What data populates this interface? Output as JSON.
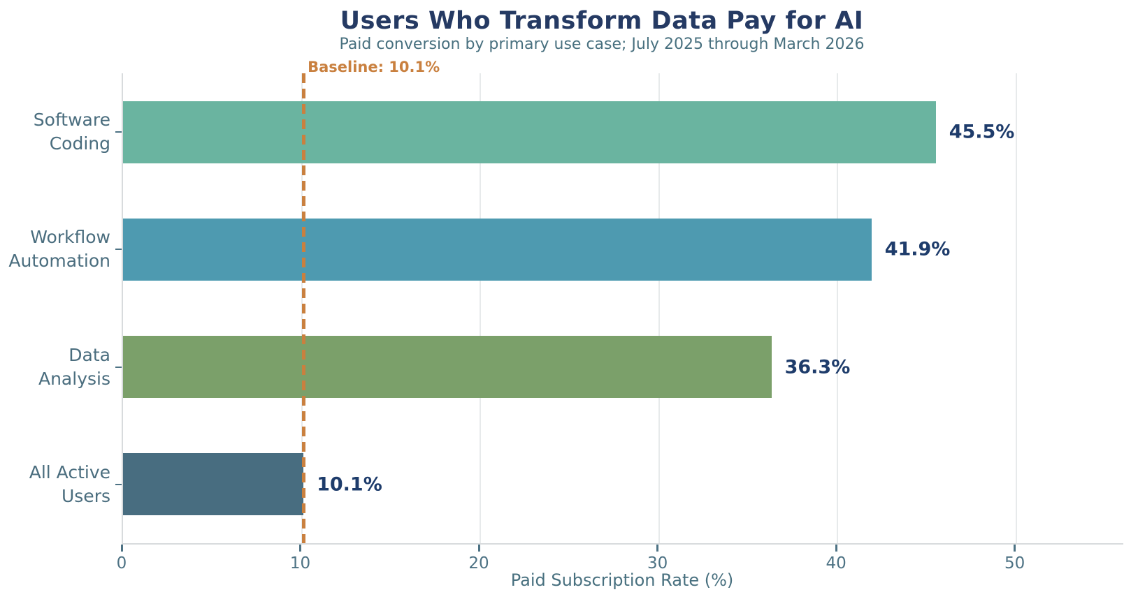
{
  "header": {
    "title": "Users Who Transform Data Pay for AI",
    "subtitle": "Paid conversion by primary use case; July 2025 through March 2026"
  },
  "chart_data": {
    "type": "bar",
    "orientation": "horizontal",
    "title": "Users Who Transform Data Pay for AI",
    "subtitle": "Paid conversion by primary use case; July 2025 through March 2026",
    "categories": [
      "Software Coding",
      "Workflow Automation",
      "Data Analysis",
      "All Active Users"
    ],
    "category_display_lines": [
      "Software\nCoding",
      "Workflow\nAutomation",
      "Data\nAnalysis",
      "All Active\nUsers"
    ],
    "values": [
      45.5,
      41.9,
      36.3,
      10.1
    ],
    "value_labels": [
      "45.5%",
      "41.9%",
      "36.3%",
      "10.1%"
    ],
    "bar_colors": [
      "#6ab4a0",
      "#4e9ab0",
      "#7ba06a",
      "#486d80"
    ],
    "xlabel": "Paid Subscription Rate (%)",
    "ylabel": "",
    "xlim": [
      0,
      56
    ],
    "xticks": [
      0,
      10,
      20,
      30,
      40,
      50
    ],
    "grid": true,
    "legend": "none",
    "baseline": {
      "value": 10.1,
      "label": "Baseline: 10.1%",
      "color": "#c9803f"
    }
  },
  "colors": {
    "background": "#ffffff",
    "title": "#253a63",
    "subtitle": "#48707f",
    "axis_text": "#4d7284",
    "category_label": "#4a6d7e",
    "value_label": "#1e3c6b",
    "gridline": "#e7eaeb",
    "spine": "#d8dbdd"
  }
}
